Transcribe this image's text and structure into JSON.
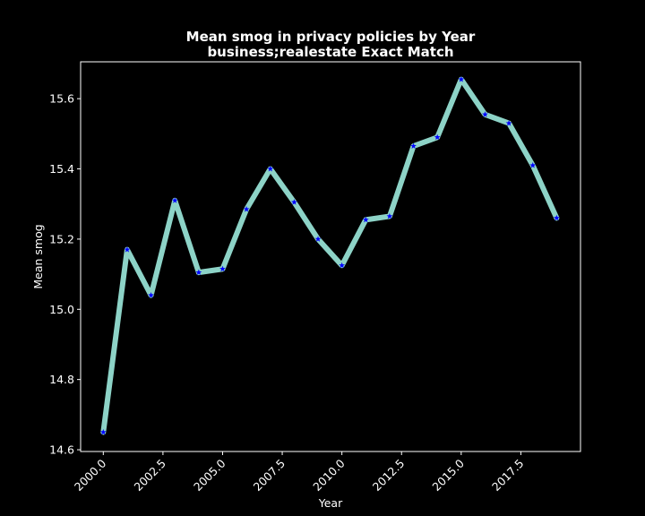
{
  "chart_data": {
    "type": "line",
    "title_line1": "Mean smog in privacy policies by Year",
    "title_line2": "business;realestate Exact Match",
    "xlabel": "Year",
    "ylabel": "Mean smog",
    "xlim": [
      1999.05,
      2020.0
    ],
    "ylim": [
      14.595,
      15.705
    ],
    "x_ticks": [
      2000.0,
      2002.5,
      2005.0,
      2007.5,
      2010.0,
      2012.5,
      2015.0,
      2017.5
    ],
    "x_tick_labels": [
      "2000.0",
      "2002.5",
      "2005.0",
      "2007.5",
      "2010.0",
      "2012.5",
      "2015.0",
      "2017.5"
    ],
    "y_ticks": [
      14.6,
      14.8,
      15.0,
      15.2,
      15.4,
      15.6
    ],
    "y_tick_labels": [
      "14.6",
      "14.8",
      "15.0",
      "15.2",
      "15.4",
      "15.6"
    ],
    "series": [
      {
        "name": "Mean smog",
        "x": [
          2000,
          2001,
          2002,
          2003,
          2004,
          2005,
          2006,
          2007,
          2008,
          2009,
          2010,
          2011,
          2012,
          2013,
          2014,
          2015,
          2016,
          2017,
          2018,
          2019
        ],
        "values": [
          14.65,
          15.17,
          15.04,
          15.31,
          15.105,
          15.115,
          15.285,
          15.4,
          15.305,
          15.2,
          15.125,
          15.255,
          15.265,
          15.465,
          15.49,
          15.655,
          15.555,
          15.53,
          15.41,
          15.26
        ]
      }
    ],
    "colors": {
      "background": "#000000",
      "line": "#8dd3c7",
      "marker": "#0000ff",
      "text": "#ffffff",
      "axes": "#ffffff"
    }
  }
}
